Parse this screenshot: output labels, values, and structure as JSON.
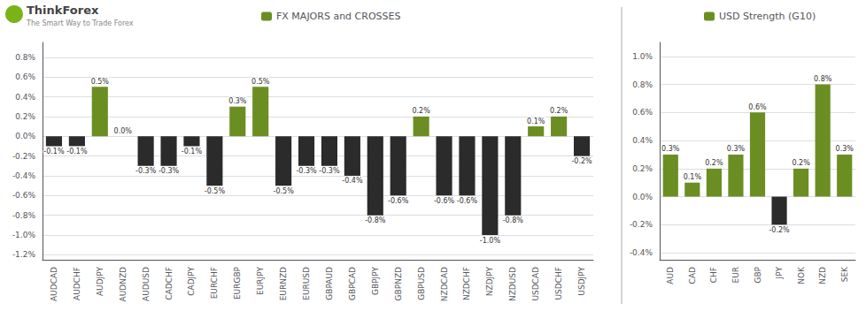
{
  "chart_data": [
    {
      "type": "bar",
      "categories": [
        "AUDCAD",
        "AUDCHF",
        "AUDJPY",
        "AUDNZD",
        "AUDUSD",
        "CADCHF",
        "CADJPY",
        "EURCHF",
        "EURGBP",
        "EURJPY",
        "EURNZD",
        "EURUSD",
        "GBPAUD",
        "GBPCAD",
        "GBPJPY",
        "GBPNZD",
        "GBPUSD",
        "NZDCAD",
        "NZDCHF",
        "NZDJPY",
        "NZDUSD",
        "USDCAD",
        "USDCHF",
        "USDJPY"
      ],
      "series": [
        {
          "name": "FX MAJORS and CROSSES",
          "color": "#6B8E23",
          "colors": [
            "#2b2b2b",
            "#2b2b2b",
            "#6B8E23",
            "#6B8E23",
            "#2b2b2b",
            "#2b2b2b",
            "#2b2b2b",
            "#2b2b2b",
            "#6B8E23",
            "#6B8E23",
            "#2b2b2b",
            "#2b2b2b",
            "#2b2b2b",
            "#2b2b2b",
            "#2b2b2b",
            "#2b2b2b",
            "#6B8E23",
            "#2b2b2b",
            "#2b2b2b",
            "#2b2b2b",
            "#2b2b2b",
            "#6B8E23",
            "#6B8E23",
            "#2b2b2b"
          ],
          "values": [
            -0.1,
            -0.1,
            0.5,
            0.0,
            -0.3,
            -0.3,
            -0.1,
            -0.5,
            0.3,
            0.5,
            -0.5,
            -0.3,
            -0.3,
            -0.4,
            -0.8,
            -0.6,
            0.2,
            -0.6,
            -0.6,
            -1.0,
            -0.8,
            0.1,
            0.2,
            -0.2
          ],
          "value_labels": [
            "-0.1%",
            "-0.1%",
            "0.5%",
            "0.0%",
            "-0.3%",
            "-0.3%",
            "-0.1%",
            "-0.5%",
            "0.3%",
            "0.5%",
            "-0.5%",
            "-0.3%",
            "-0.3%",
            "-0.4%",
            "-0.8%",
            "-0.6%",
            "0.2%",
            "-0.6%",
            "-0.6%",
            "-1.0%",
            "-0.8%",
            "0.1%",
            "0.2%",
            "-0.2%"
          ]
        }
      ],
      "ylim": [
        -1.25,
        0.95
      ],
      "yticks": [
        {
          "value": -1.2,
          "label": "-1.2%"
        },
        {
          "value": -1.0,
          "label": "-1.0%"
        },
        {
          "value": -0.8,
          "label": "-0.8%"
        },
        {
          "value": -0.6,
          "label": "-0.6%"
        },
        {
          "value": -0.4,
          "label": "-0.4%"
        },
        {
          "value": -0.2,
          "label": "-0.2%"
        },
        {
          "value": 0.0,
          "label": "0.0%"
        },
        {
          "value": 0.2,
          "label": "0.2%"
        },
        {
          "value": 0.4,
          "label": "0.4%"
        },
        {
          "value": 0.6,
          "label": "0.6%"
        },
        {
          "value": 0.8,
          "label": "0.8%"
        }
      ],
      "grid": true,
      "legend": "top",
      "data_labels": true,
      "annotations": [
        "ThinkForex",
        "The Smart Way to Trade Forex"
      ]
    },
    {
      "type": "bar",
      "categories": [
        "AUD",
        "CAD",
        "CHF",
        "EUR",
        "GBP",
        "JPY",
        "NOK",
        "NZD",
        "SEK"
      ],
      "series": [
        {
          "name": "USD Strength (G10)",
          "color": "#6B8E23",
          "colors": [
            "#6B8E23",
            "#6B8E23",
            "#6B8E23",
            "#6B8E23",
            "#6B8E23",
            "#2b2b2b",
            "#6B8E23",
            "#6B8E23",
            "#6B8E23"
          ],
          "values": [
            0.3,
            0.1,
            0.2,
            0.3,
            0.6,
            -0.2,
            0.2,
            0.8,
            0.3
          ],
          "value_labels": [
            "0.3%",
            "0.1%",
            "0.2%",
            "0.3%",
            "0.6%",
            "-0.2%",
            "0.2%",
            "0.8%",
            "0.3%"
          ]
        }
      ],
      "ylim": [
        -0.45,
        1.1
      ],
      "yticks": [
        {
          "value": -0.4,
          "label": "-0.4%"
        },
        {
          "value": -0.2,
          "label": "-0.2%"
        },
        {
          "value": 0.0,
          "label": "0.0%"
        },
        {
          "value": 0.2,
          "label": "0.2%"
        },
        {
          "value": 0.4,
          "label": "0.4%"
        },
        {
          "value": 0.6,
          "label": "0.6%"
        },
        {
          "value": 0.8,
          "label": "0.8%"
        },
        {
          "value": 1.0,
          "label": "1.0%"
        }
      ],
      "grid": true,
      "legend": "top",
      "data_labels": true
    }
  ]
}
